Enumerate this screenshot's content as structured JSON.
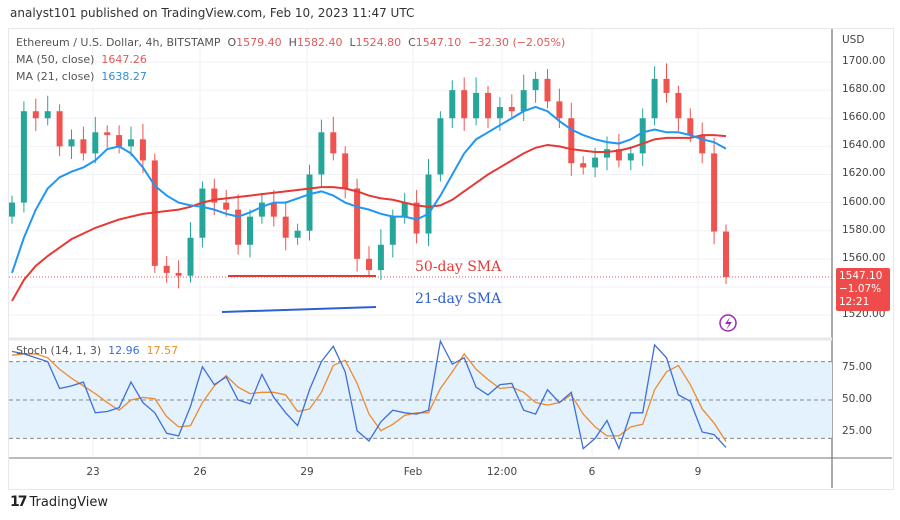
{
  "header": {
    "published": "analyst101 published on TradingView.com, Feb 10, 2023 11:47 UTC"
  },
  "legend": {
    "symbol": "Ethereum / U.S. Dollar, 4h, BITSTAMP",
    "o_label": "O",
    "o": "1579.40",
    "h_label": "H",
    "h": "1582.40",
    "l_label": "L",
    "l": "1524.80",
    "c_label": "C",
    "c": "1547.10",
    "change": "−32.30 (−2.05%)",
    "ma50_label": "MA (50, close)",
    "ma50": "1647.26",
    "ma21_label": "MA (21, close)",
    "ma21": "1638.27",
    "stoch_label": "Stoch (14, 1, 3)",
    "stoch_k": "12.96",
    "stoch_d": "17.57"
  },
  "price_axis": {
    "currency": "USD",
    "ticks": [
      "1700.00",
      "1680.00",
      "1660.00",
      "1640.00",
      "1620.00",
      "1600.00",
      "1580.00",
      "1560.00",
      "1520.00"
    ]
  },
  "price_tag": {
    "price": "1547.10",
    "change": "−1.07%",
    "countdown": "12:21"
  },
  "stoch_axis": {
    "ticks": [
      "75.00",
      "50.00",
      "25.00"
    ]
  },
  "time_axis": {
    "ticks": [
      "23",
      "26",
      "29",
      "Feb",
      "12:00",
      "6",
      "9"
    ]
  },
  "annotations": {
    "sma50": "50-day SMA",
    "sma21": "21-day SMA"
  },
  "footer": {
    "brand": "TradingView"
  },
  "colors": {
    "up": "#26a69a",
    "down": "#ef5350",
    "ma50": "#e53935",
    "ma21": "#2196f3",
    "stoch_k": "#3f6fd8",
    "stoch_d": "#ef8a2d",
    "band": "#e3f2fd"
  },
  "chart_data": {
    "type": "candlestick",
    "ylim": [
      1510,
      1720
    ],
    "closes": [
      1600,
      1665,
      1660,
      1665,
      1640,
      1645,
      1635,
      1650,
      1648,
      1640,
      1645,
      1630,
      1555,
      1550,
      1548,
      1575,
      1610,
      1600,
      1595,
      1570,
      1590,
      1600,
      1590,
      1575,
      1580,
      1620,
      1650,
      1635,
      1610,
      1560,
      1552,
      1570,
      1590,
      1600,
      1578,
      1620,
      1660,
      1680,
      1660,
      1678,
      1660,
      1668,
      1665,
      1680,
      1688,
      1672,
      1660,
      1628,
      1625,
      1632,
      1638,
      1630,
      1635,
      1660,
      1688,
      1678,
      1660,
      1648,
      1635,
      1579.4,
      1547.1
    ],
    "ma50": [
      1530,
      1545,
      1555,
      1562,
      1568,
      1574,
      1578,
      1582,
      1585,
      1588,
      1590,
      1592,
      1593,
      1594,
      1595,
      1597,
      1600,
      1602,
      1603,
      1604,
      1605,
      1606,
      1607,
      1608,
      1609,
      1610,
      1611,
      1611,
      1610,
      1608,
      1605,
      1603,
      1602,
      1600,
      1598,
      1597,
      1598,
      1602,
      1608,
      1614,
      1620,
      1625,
      1630,
      1635,
      1639,
      1641,
      1640,
      1638,
      1637,
      1636,
      1636,
      1637,
      1639,
      1642,
      1645,
      1646,
      1646,
      1646,
      1648,
      1648,
      1647.26
    ],
    "ma21": [
      1550,
      1575,
      1595,
      1610,
      1618,
      1622,
      1625,
      1630,
      1638,
      1640,
      1635,
      1625,
      1612,
      1605,
      1600,
      1598,
      1597,
      1595,
      1592,
      1590,
      1593,
      1597,
      1600,
      1600,
      1603,
      1606,
      1608,
      1605,
      1600,
      1597,
      1595,
      1592,
      1590,
      1590,
      1588,
      1592,
      1605,
      1620,
      1635,
      1645,
      1650,
      1655,
      1660,
      1665,
      1668,
      1665,
      1658,
      1652,
      1648,
      1645,
      1643,
      1642,
      1645,
      1650,
      1652,
      1650,
      1650,
      1648,
      1645,
      1643,
      1638.27
    ],
    "stoch_k": [
      88,
      86,
      83,
      80,
      59,
      61,
      64,
      40,
      41,
      44,
      64,
      48,
      40,
      24,
      22,
      45,
      76,
      62,
      68,
      50,
      47,
      70,
      52,
      40,
      30,
      58,
      80,
      92,
      72,
      26,
      18,
      33,
      42,
      40,
      39,
      42,
      96,
      78,
      83,
      60,
      54,
      62,
      63,
      42,
      39,
      58,
      48,
      56,
      12,
      20,
      34,
      12,
      40,
      40,
      93,
      83,
      54,
      49,
      25,
      23,
      12.96
    ],
    "stoch_d": [
      85,
      86,
      86,
      83,
      74,
      67,
      61,
      55,
      48,
      42,
      50,
      52,
      51,
      37,
      29,
      30,
      48,
      61,
      69,
      60,
      55,
      56,
      56,
      54,
      41,
      43,
      56,
      77,
      81,
      63,
      39,
      26,
      31,
      38,
      40,
      40,
      59,
      72,
      86,
      74,
      66,
      59,
      60,
      56,
      48,
      46,
      48,
      54,
      39,
      29,
      22,
      22,
      29,
      31,
      58,
      72,
      77,
      62,
      43,
      32,
      17.57
    ],
    "stoch_ylim": [
      0,
      100
    ],
    "stoch_levels": [
      80,
      50,
      20
    ]
  }
}
